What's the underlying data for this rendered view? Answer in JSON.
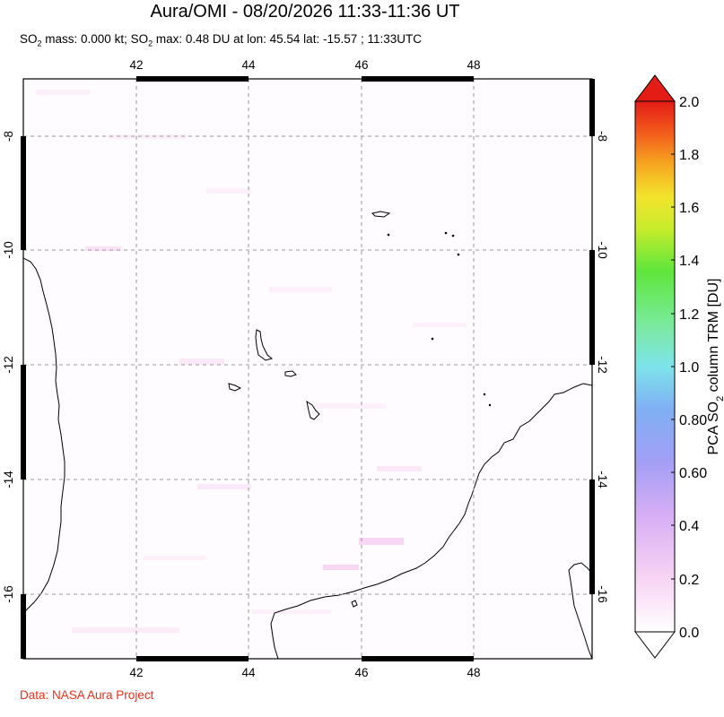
{
  "header": {
    "title": "Aura/OMI - 08/20/2026 11:33-11:36 UT",
    "subtitle_pre": "SO",
    "subtitle_sub": "2",
    "subtitle_mid": " mass: 0.000 kt; SO",
    "subtitle_sub2": "2",
    "subtitle_post": " max: 0.48 DU at lon: 45.54 lat: -15.57 ; 11:33UTC"
  },
  "map": {
    "lon_ticks": [
      "42",
      "44",
      "46",
      "48"
    ],
    "lat_ticks": [
      "-8",
      "-10",
      "-12",
      "-14",
      "-16"
    ],
    "lon_range": [
      40,
      50
    ],
    "lat_range": [
      -17.2,
      -7
    ]
  },
  "colorbar": {
    "labels": [
      "2.0",
      "1.8",
      "1.6",
      "1.4",
      "1.2",
      "1.0",
      "0.80",
      "0.60",
      "0.4",
      "0.2",
      "0.0"
    ],
    "title_pre": "PCA SO",
    "title_sub": "2",
    "title_post": " column TRM [DU]",
    "range": [
      0,
      2.0
    ],
    "colors": [
      "#ffffff",
      "#f7c8f2",
      "#c9a9f5",
      "#8f9cf5",
      "#6fb7f3",
      "#7ee6e8",
      "#7be99a",
      "#63e83f",
      "#c6ec2b",
      "#f5e52c",
      "#f6a821",
      "#f25c1c",
      "#e31c16"
    ]
  },
  "footer": {
    "credit": "Data: NASA Aura Project"
  }
}
